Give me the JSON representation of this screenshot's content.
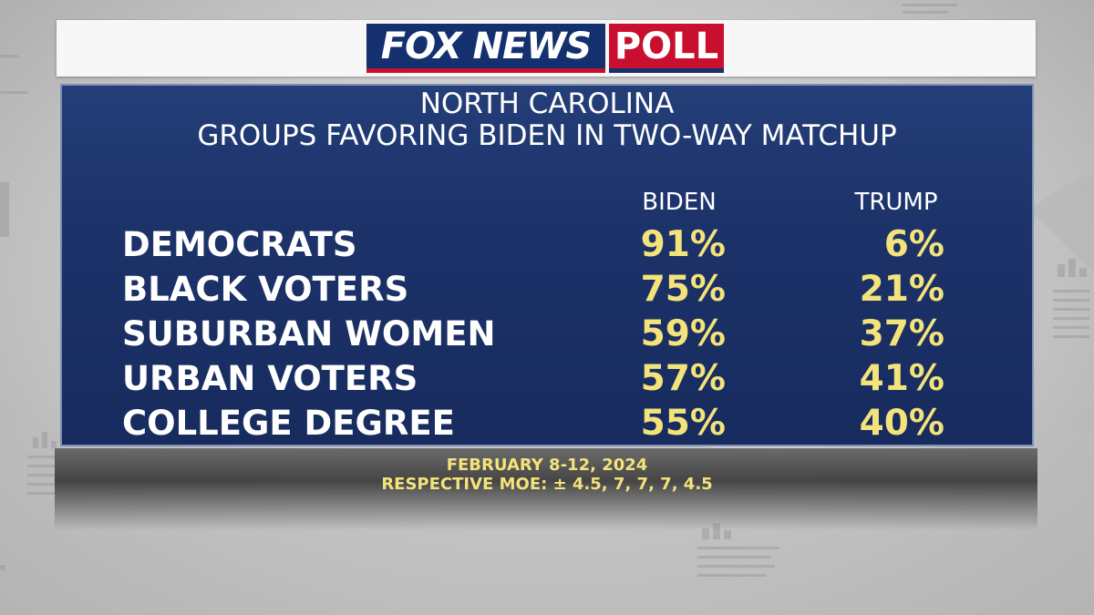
{
  "logo": {
    "brand": "FOX NEWS",
    "section": "POLL"
  },
  "chart_data": {
    "type": "table",
    "title": "NORTH CAROLINA",
    "subtitle": "GROUPS FAVORING BIDEN IN TWO-WAY MATCHUP",
    "columns": [
      "BIDEN",
      "TRUMP"
    ],
    "rows": [
      {
        "label": "DEMOCRATS",
        "biden": "91%",
        "trump": "6%"
      },
      {
        "label": "BLACK VOTERS",
        "biden": "75%",
        "trump": "21%"
      },
      {
        "label": "SUBURBAN WOMEN",
        "biden": "59%",
        "trump": "37%"
      },
      {
        "label": "URBAN VOTERS",
        "biden": "57%",
        "trump": "41%"
      },
      {
        "label": "COLLEGE DEGREE",
        "biden": "55%",
        "trump": "40%"
      }
    ],
    "series": [
      {
        "name": "BIDEN",
        "values": [
          91,
          75,
          59,
          57,
          55
        ]
      },
      {
        "name": "TRUMP",
        "values": [
          6,
          21,
          37,
          41,
          40
        ]
      }
    ]
  },
  "footer": {
    "dates": "FEBRUARY 8-12, 2024",
    "moe": "RESPECTIVE MOE: ± 4.5, 7, 7, 7, 4.5"
  },
  "colors": {
    "panel": "#1c3269",
    "value_text": "#f3e37a",
    "brand_blue": "#14306f",
    "brand_red": "#c8102e"
  }
}
